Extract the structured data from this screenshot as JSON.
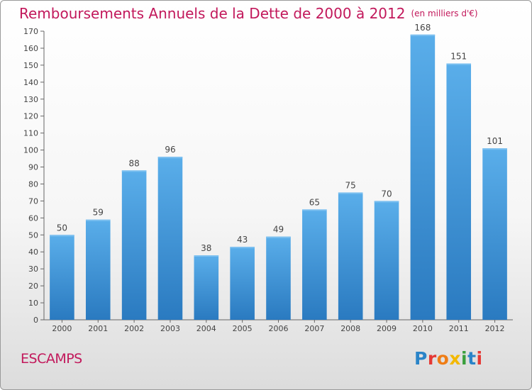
{
  "chart_data": {
    "type": "bar",
    "title": "Remboursements Annuels de la Dette de 2000 à 2012",
    "subtitle": "(en milliers d'€)",
    "categories": [
      "2000",
      "2001",
      "2002",
      "2003",
      "2004",
      "2005",
      "2006",
      "2007",
      "2008",
      "2009",
      "2010",
      "2011",
      "2012"
    ],
    "values": [
      50,
      59,
      88,
      96,
      38,
      43,
      49,
      65,
      75,
      70,
      168,
      151,
      101
    ],
    "ylim": [
      0,
      170
    ],
    "ytick_step": 10,
    "grid": false,
    "bar_color": "#3d93d8",
    "bar_color_dark": "#2a7ac0",
    "bar_color_light": "#5aaeea"
  },
  "commune": "ESCAMPS",
  "logo": {
    "letters": [
      "P",
      "r",
      "o",
      "x",
      "i",
      "t",
      "i"
    ]
  },
  "colors": {
    "title": "#c2185b",
    "axis": "#555555"
  }
}
